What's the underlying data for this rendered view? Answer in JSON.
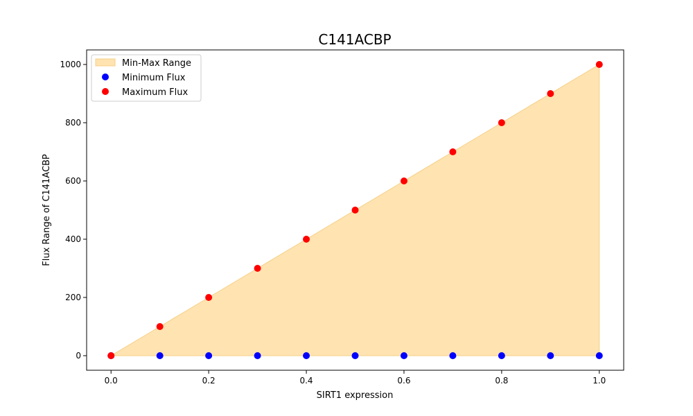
{
  "chart_data": {
    "type": "scatter",
    "title": "C141ACBP",
    "xlabel": "SIRT1 expression",
    "ylabel": "Flux Range of C141ACBP",
    "xlim": [
      -0.05,
      1.05
    ],
    "ylim": [
      -50,
      1050
    ],
    "xticks": [
      0.0,
      0.2,
      0.4,
      0.6,
      0.8,
      1.0
    ],
    "xtick_labels": [
      "0.0",
      "0.2",
      "0.4",
      "0.6",
      "0.8",
      "1.0"
    ],
    "yticks": [
      0,
      200,
      400,
      600,
      800,
      1000
    ],
    "ytick_labels": [
      "0",
      "200",
      "400",
      "600",
      "800",
      "1000"
    ],
    "grid": false,
    "legend_position": "top-left",
    "x": [
      0.0,
      0.1,
      0.2,
      0.3,
      0.4,
      0.5,
      0.6,
      0.7,
      0.8,
      0.9,
      1.0
    ],
    "range_fill": {
      "name": "Min-Max Range",
      "color": "#ffe3b0",
      "edge_color": "#f5cf87"
    },
    "series": [
      {
        "name": "Minimum Flux",
        "color": "#0000ff",
        "values": [
          0,
          0,
          0,
          0,
          0,
          0,
          0,
          0,
          0,
          0,
          0
        ]
      },
      {
        "name": "Maximum Flux",
        "color": "#ff0000",
        "values": [
          0,
          100,
          200,
          300,
          400,
          500,
          600,
          700,
          800,
          900,
          1000
        ]
      }
    ]
  }
}
